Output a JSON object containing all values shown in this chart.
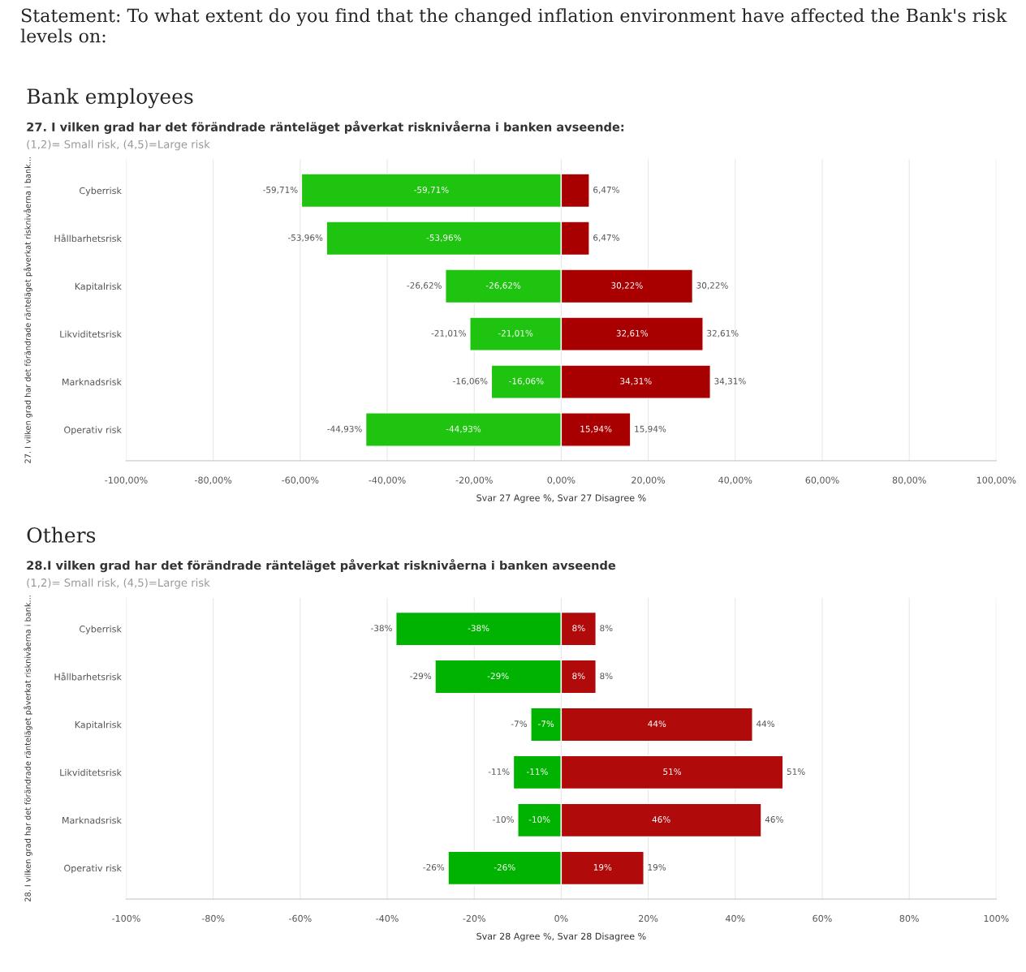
{
  "chart_data": [
    {
      "type": "other",
      "title": "Statement: To what extent do you find that the changed inflation environment have affected the Bank's risk levels on:"
    },
    {
      "type": "bar",
      "orientation": "horizontal",
      "stacked": true,
      "title": "Bank employees",
      "subtitle": "27. I vilken grad har det förändrade ränteläget påverkat risknivåerna i banken avseende:",
      "annotations": [
        "(1,2)= Small risk, (4,5)=Large risk"
      ],
      "xlabel": "Svar 27 Agree %, Svar 27 Disagree %",
      "ylabel": "27. I vilken grad har det förändrade ränteläget påverkat risknivåerna i bank...",
      "categories": [
        "Cyberrisk",
        "Hållbarhetsrisk",
        "Kapitalrisk",
        "Likviditetsrisk",
        "Marknadsrisk",
        "Operativ risk"
      ],
      "series": [
        {
          "color": "#1ec40f",
          "values": [
            -59.71,
            -53.96,
            -26.62,
            -21.01,
            -16.06,
            -44.93
          ],
          "value_labels": [
            "-59,71%",
            "-53,96%",
            "-26,62%",
            "-21,01%",
            "-16,06%",
            "-44,93%"
          ]
        },
        {
          "color": "#a80000",
          "values": [
            6.47,
            6.47,
            30.22,
            32.61,
            34.31,
            15.94
          ],
          "value_labels": [
            "6,47%",
            "6,47%",
            "30,22%",
            "32,61%",
            "34,31%",
            "15,94%"
          ]
        }
      ],
      "xlim": [
        -100,
        100
      ],
      "xticks": [
        {
          "value": -100,
          "label": "-100,00%"
        },
        {
          "value": -80,
          "label": "-80,00%"
        },
        {
          "value": -60,
          "label": "-60,00%"
        },
        {
          "value": -40,
          "label": "-40,00%"
        },
        {
          "value": -20,
          "label": "-20,00%"
        },
        {
          "value": 0,
          "label": "0,00%"
        },
        {
          "value": 20,
          "label": "20,00%"
        },
        {
          "value": 40,
          "label": "40,00%"
        },
        {
          "value": 60,
          "label": "60,00%"
        },
        {
          "value": 80,
          "label": "80,00%"
        },
        {
          "value": 100,
          "label": "100,00%"
        }
      ],
      "grid": "x",
      "legend": false
    },
    {
      "type": "bar",
      "orientation": "horizontal",
      "stacked": true,
      "title": "Others",
      "subtitle": "28.I vilken grad har det förändrade ränteläget påverkat risknivåerna i banken avseende",
      "annotations": [
        "(1,2)= Small risk, (4,5)=Large risk"
      ],
      "xlabel": "Svar 28 Agree %, Svar 28 Disagree %",
      "ylabel": "28. I vilken grad har det förändrade ränteläget påverkat risknivåerna i bank...",
      "categories": [
        "Cyberrisk",
        "Hållbarhetsrisk",
        "Kapitalrisk",
        "Likviditetsrisk",
        "Marknadsrisk",
        "Operativ risk"
      ],
      "series": [
        {
          "color": "#00b300",
          "values": [
            -38,
            -29,
            -7,
            -11,
            -10,
            -26
          ],
          "value_labels": [
            "-38%",
            "-29%",
            "-7%",
            "-11%",
            "-10%",
            "-26%"
          ]
        },
        {
          "color": "#b00a0a",
          "values": [
            8,
            8,
            44,
            51,
            46,
            19
          ],
          "value_labels": [
            "8%",
            "8%",
            "44%",
            "51%",
            "46%",
            "19%"
          ]
        }
      ],
      "xlim": [
        -100,
        100
      ],
      "xticks": [
        {
          "value": -100,
          "label": "-100%"
        },
        {
          "value": -80,
          "label": "-80%"
        },
        {
          "value": -60,
          "label": "-60%"
        },
        {
          "value": -40,
          "label": "-40%"
        },
        {
          "value": -20,
          "label": "-20%"
        },
        {
          "value": 0,
          "label": "0%"
        },
        {
          "value": 20,
          "label": "20%"
        },
        {
          "value": 40,
          "label": "40%"
        },
        {
          "value": 60,
          "label": "60%"
        },
        {
          "value": 80,
          "label": "80%"
        },
        {
          "value": 100,
          "label": "100%"
        }
      ],
      "grid": "x",
      "legend": false
    }
  ]
}
